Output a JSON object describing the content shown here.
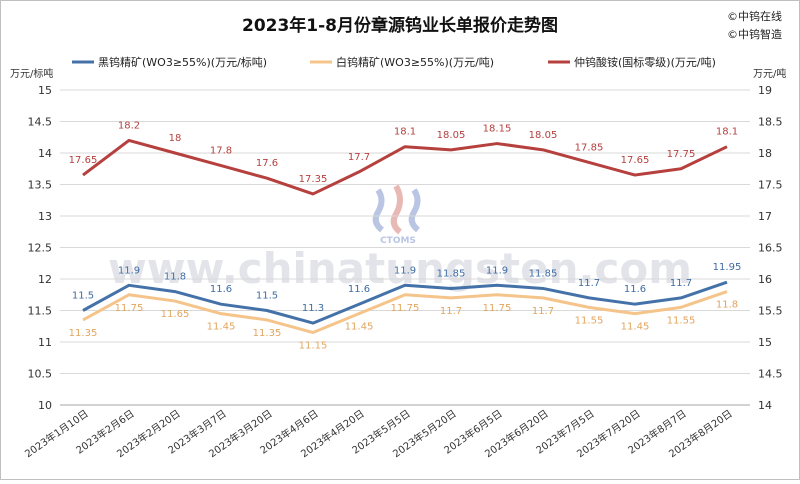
{
  "chart_data": {
    "type": "line",
    "title": "2023年1-8月份章源钨业长单报价走势图",
    "credits": [
      "©中钨在线",
      "©中钨智造"
    ],
    "y_left_label": "万元/标吨",
    "y_right_label": "万元/吨",
    "categories": [
      "2023年1月10日",
      "2023年2月6日",
      "2023年2月20日",
      "2023年3月7日",
      "2023年3月20日",
      "2023年4月6日",
      "2023年4月20日",
      "2023年5月5日",
      "2023年5月20日",
      "2023年6月5日",
      "2023年6月20日",
      "2023年7月5日",
      "2023年7月20日",
      "2023年8月7日",
      "2023年8月20日"
    ],
    "ylim_left": [
      10,
      15
    ],
    "ylim_right": [
      14,
      19
    ],
    "yticks_left": [
      "10",
      "10.5",
      "11",
      "11.5",
      "12",
      "12.5",
      "13",
      "13.5",
      "14",
      "14.5",
      "15"
    ],
    "yticks_right": [
      "14",
      "14.5",
      "15",
      "15.5",
      "16",
      "16.5",
      "17",
      "17.5",
      "18",
      "18.5",
      "19"
    ],
    "grid": true,
    "legend_position": "top",
    "series": [
      {
        "name": "黑钨精矿(WO3≥55%)(万元/标吨)",
        "axis": "left",
        "color": "#4472a8",
        "label_color": "#3f6da3",
        "values": [
          11.5,
          11.9,
          11.8,
          11.6,
          11.5,
          11.3,
          11.6,
          11.9,
          11.85,
          11.9,
          11.85,
          11.7,
          11.6,
          11.7,
          11.95
        ],
        "labels": [
          "11.5",
          "11.9",
          "11.8",
          "11.6",
          "11.5",
          "11.3",
          "11.6",
          "11.9",
          "11.85",
          "11.9",
          "11.85",
          "11.7",
          "11.6",
          "11.7",
          "11.95"
        ]
      },
      {
        "name": "白钨精矿(WO3≥55%)(万元/吨)",
        "axis": "left",
        "color": "#f5c48a",
        "label_color": "#e2a55e",
        "values": [
          11.35,
          11.75,
          11.65,
          11.45,
          11.35,
          11.15,
          11.45,
          11.75,
          11.7,
          11.75,
          11.7,
          11.55,
          11.45,
          11.55,
          11.8
        ],
        "labels": [
          "11.35",
          "11.75",
          "11.65",
          "11.45",
          "11.35",
          "11.15",
          "11.45",
          "11.75",
          "11.7",
          "11.75",
          "11.7",
          "11.55",
          "11.45",
          "11.55",
          "11.8"
        ]
      },
      {
        "name": "仲钨酸铵(国标零级)(万元/吨)",
        "axis": "right",
        "color": "#b5403e",
        "label_color": "#b5403e",
        "values": [
          17.65,
          18.2,
          18,
          17.8,
          17.6,
          17.35,
          17.7,
          18.1,
          18.05,
          18.15,
          18.05,
          17.85,
          17.65,
          17.75,
          18.1
        ],
        "labels": [
          "17.65",
          "18.2",
          "18",
          "17.8",
          "17.6",
          "17.35",
          "17.7",
          "18.1",
          "18.05",
          "18.15",
          "18.05",
          "17.85",
          "17.65",
          "17.75",
          "18.1"
        ]
      }
    ]
  },
  "watermark": {
    "text": "www.chinatungsten.com",
    "logo_text": "CTOMS"
  }
}
